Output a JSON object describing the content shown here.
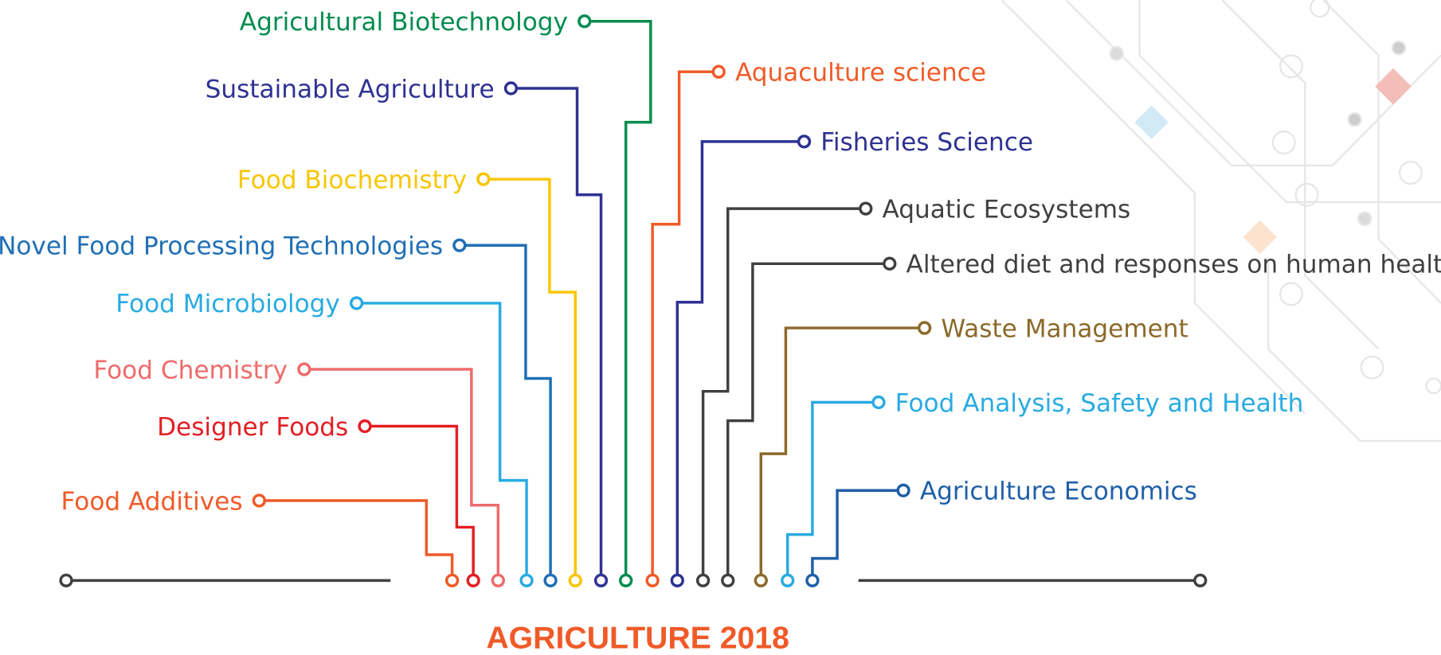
{
  "title": "AGRICULTURE 2018",
  "nodes": [
    {
      "label": "Food Additives",
      "color": "#f05a28"
    },
    {
      "label": "Designer Foods",
      "color": "#e31e24"
    },
    {
      "label": "Food Chemistry",
      "color": "#ef6b6b"
    },
    {
      "label": "Food Microbiology",
      "color": "#29abe2"
    },
    {
      "label": "Novel Food Processing Technologies",
      "color": "#1f6fb5"
    },
    {
      "label": "Food Biochemistry",
      "color": "#f7c600"
    },
    {
      "label": "Sustainable Agriculture",
      "color": "#2e3192"
    },
    {
      "label": "Agricultural Biotechnology",
      "color": "#008c4f"
    },
    {
      "label": "Aquaculture science",
      "color": "#f05a28"
    },
    {
      "label": "Fisheries Science",
      "color": "#2e3192"
    },
    {
      "label": "Aquatic Ecosystems",
      "color": "#404040"
    },
    {
      "label": "Altered diet and responses on human health",
      "color": "#404040"
    },
    {
      "label": "Waste Management",
      "color": "#8b6a2a"
    },
    {
      "label": "Food Analysis, Safety and Health",
      "color": "#29abe2"
    },
    {
      "label": "Agriculture Economics",
      "color": "#1f5fa8"
    }
  ]
}
